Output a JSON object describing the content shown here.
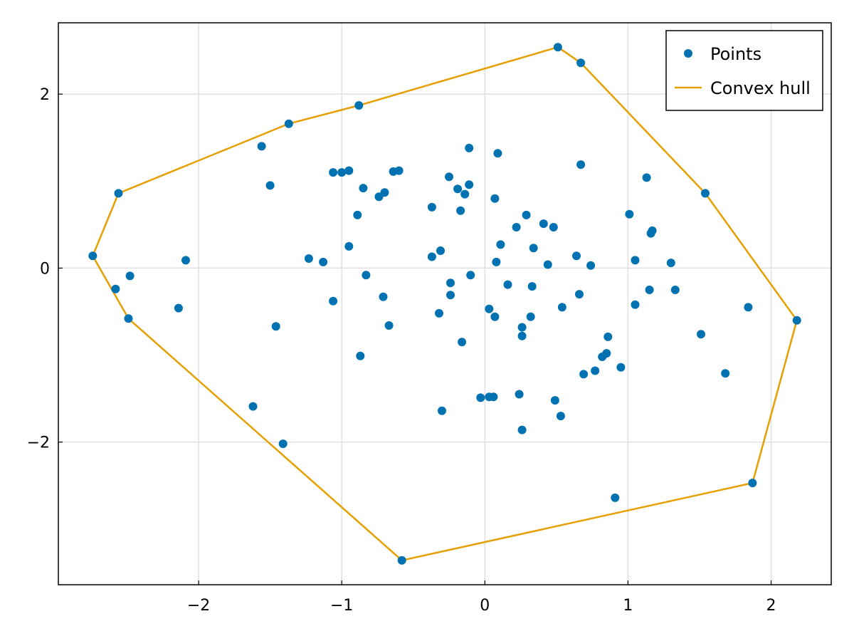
{
  "chart_data": {
    "type": "scatter",
    "title": "",
    "xlabel": "",
    "ylabel": "",
    "xlim": [
      -2.98,
      2.42
    ],
    "ylim": [
      -3.64,
      2.82
    ],
    "grid": true,
    "legend_placement": "top-right",
    "x_ticks": [
      {
        "value": -2,
        "label": "−2"
      },
      {
        "value": -1,
        "label": "−1"
      },
      {
        "value": 0,
        "label": "0"
      },
      {
        "value": 1,
        "label": "1"
      },
      {
        "value": 2,
        "label": "2"
      }
    ],
    "y_ticks": [
      {
        "value": -2,
        "label": "−2"
      },
      {
        "value": 0,
        "label": "0"
      },
      {
        "value": 2,
        "label": "2"
      }
    ],
    "colors": {
      "points": "#0072b2",
      "hull": "#e69f00",
      "grid": "#e0e0e0",
      "frame": "#000000"
    },
    "series": [
      {
        "name": "Points",
        "kind": "scatter",
        "points": [
          [
            0.51,
            2.54
          ],
          [
            0.67,
            2.36
          ],
          [
            -0.88,
            1.87
          ],
          [
            -1.37,
            1.66
          ],
          [
            -1.56,
            1.4
          ],
          [
            -0.11,
            1.38
          ],
          [
            0.09,
            1.32
          ],
          [
            0.67,
            1.19
          ],
          [
            -1.06,
            1.1
          ],
          [
            -1.0,
            1.1
          ],
          [
            -0.95,
            1.12
          ],
          [
            -0.64,
            1.11
          ],
          [
            -0.6,
            1.12
          ],
          [
            1.13,
            1.04
          ],
          [
            -0.25,
            1.05
          ],
          [
            -0.11,
            0.96
          ],
          [
            -0.19,
            0.91
          ],
          [
            -0.14,
            0.85
          ],
          [
            -1.5,
            0.95
          ],
          [
            -0.85,
            0.92
          ],
          [
            -0.7,
            0.87
          ],
          [
            -0.74,
            0.82
          ],
          [
            0.07,
            0.8
          ],
          [
            -2.56,
            0.86
          ],
          [
            1.54,
            0.86
          ],
          [
            -0.37,
            0.7
          ],
          [
            -0.17,
            0.66
          ],
          [
            -0.89,
            0.61
          ],
          [
            0.29,
            0.61
          ],
          [
            1.01,
            0.62
          ],
          [
            0.41,
            0.51
          ],
          [
            0.48,
            0.47
          ],
          [
            0.22,
            0.47
          ],
          [
            1.17,
            0.43
          ],
          [
            1.16,
            0.4
          ],
          [
            0.11,
            0.27
          ],
          [
            0.34,
            0.23
          ],
          [
            -0.95,
            0.25
          ],
          [
            -0.31,
            0.2
          ],
          [
            -0.37,
            0.13
          ],
          [
            0.64,
            0.14
          ],
          [
            -1.23,
            0.11
          ],
          [
            -1.13,
            0.07
          ],
          [
            -2.74,
            0.14
          ],
          [
            -2.09,
            0.09
          ],
          [
            0.08,
            0.07
          ],
          [
            0.44,
            0.04
          ],
          [
            0.74,
            0.03
          ],
          [
            1.05,
            0.09
          ],
          [
            1.3,
            0.06
          ],
          [
            -2.48,
            -0.09
          ],
          [
            -0.83,
            -0.08
          ],
          [
            -0.1,
            -0.08
          ],
          [
            -0.24,
            -0.17
          ],
          [
            0.16,
            -0.19
          ],
          [
            0.33,
            -0.21
          ],
          [
            1.15,
            -0.25
          ],
          [
            1.33,
            -0.25
          ],
          [
            -2.58,
            -0.24
          ],
          [
            -0.24,
            -0.31
          ],
          [
            0.66,
            -0.3
          ],
          [
            -0.71,
            -0.33
          ],
          [
            -1.06,
            -0.38
          ],
          [
            1.05,
            -0.42
          ],
          [
            1.84,
            -0.45
          ],
          [
            0.03,
            -0.47
          ],
          [
            0.54,
            -0.45
          ],
          [
            -2.14,
            -0.46
          ],
          [
            -0.32,
            -0.52
          ],
          [
            0.07,
            -0.56
          ],
          [
            0.32,
            -0.56
          ],
          [
            -2.49,
            -0.58
          ],
          [
            2.18,
            -0.6
          ],
          [
            -1.46,
            -0.67
          ],
          [
            -0.67,
            -0.66
          ],
          [
            0.26,
            -0.68
          ],
          [
            1.51,
            -0.76
          ],
          [
            0.26,
            -0.78
          ],
          [
            0.86,
            -0.79
          ],
          [
            -0.16,
            -0.85
          ],
          [
            -0.87,
            -1.01
          ],
          [
            0.85,
            -0.98
          ],
          [
            0.82,
            -1.02
          ],
          [
            0.95,
            -1.14
          ],
          [
            0.77,
            -1.18
          ],
          [
            1.68,
            -1.21
          ],
          [
            0.69,
            -1.22
          ],
          [
            0.24,
            -1.45
          ],
          [
            -0.03,
            -1.49
          ],
          [
            0.03,
            -1.48
          ],
          [
            0.06,
            -1.48
          ],
          [
            0.49,
            -1.52
          ],
          [
            -1.62,
            -1.59
          ],
          [
            -0.3,
            -1.64
          ],
          [
            0.53,
            -1.7
          ],
          [
            0.26,
            -1.86
          ],
          [
            -1.41,
            -2.02
          ],
          [
            1.87,
            -2.47
          ],
          [
            0.91,
            -2.64
          ],
          [
            -0.58,
            -3.36
          ]
        ]
      },
      {
        "name": "Convex hull",
        "kind": "line",
        "points": [
          [
            -2.74,
            0.14
          ],
          [
            -2.56,
            0.86
          ],
          [
            -1.37,
            1.66
          ],
          [
            -0.88,
            1.87
          ],
          [
            0.51,
            2.54
          ],
          [
            0.67,
            2.36
          ],
          [
            1.54,
            0.86
          ],
          [
            2.18,
            -0.6
          ],
          [
            1.87,
            -2.47
          ],
          [
            -0.58,
            -3.36
          ],
          [
            -2.49,
            -0.58
          ],
          [
            -2.74,
            0.14
          ]
        ]
      }
    ]
  }
}
